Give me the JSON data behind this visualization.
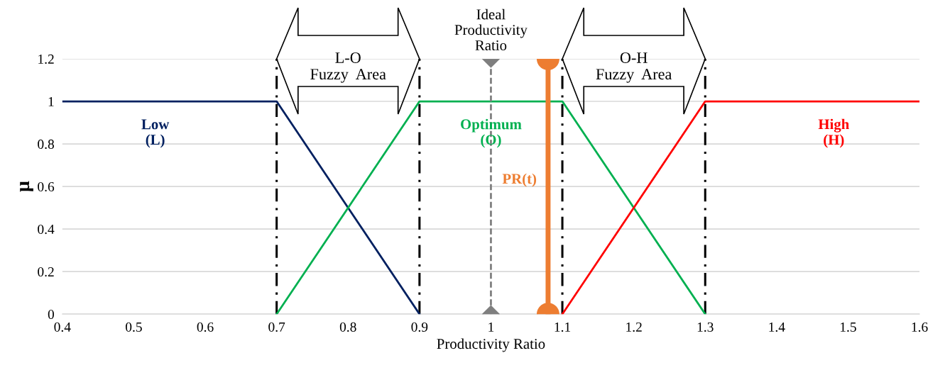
{
  "chart_data": {
    "type": "line",
    "xlabel": "Productivity Ratio",
    "ylabel": "μ",
    "series": [
      {
        "name": "Low\n(L)",
        "color": "#002060",
        "x": [
          0.4,
          0.7,
          0.9
        ],
        "values": [
          1,
          1,
          0
        ]
      },
      {
        "name": "Optimum\n(O)",
        "color": "#00b050",
        "x": [
          0.7,
          0.9,
          1.1,
          1.3
        ],
        "values": [
          0,
          1,
          1,
          0
        ]
      },
      {
        "name": "High\n(H)",
        "color": "#ff0000",
        "x": [
          1.1,
          1.3,
          1.6
        ],
        "values": [
          0,
          1,
          1
        ]
      },
      {
        "name": "PR(t)",
        "color": "#ed7d31",
        "x": [
          1.08,
          1.08
        ],
        "values": [
          0,
          1.2
        ],
        "marker": "circle"
      },
      {
        "name": "Ideal\nProductivity\nRatio",
        "color": "#7f7f7f",
        "x": [
          1,
          1
        ],
        "values": [
          0,
          1.2
        ],
        "marker": "diamond",
        "line_style": "dashed"
      }
    ],
    "ref_lines": [
      {
        "axis": "x",
        "value": 0.7,
        "color": "#000000",
        "line_style": "dashdot"
      },
      {
        "axis": "x",
        "value": 0.9,
        "color": "#000000",
        "line_style": "dashdot"
      },
      {
        "axis": "x",
        "value": 1.1,
        "color": "#000000",
        "line_style": "dashdot"
      },
      {
        "axis": "x",
        "value": 1.3,
        "color": "#000000",
        "line_style": "dashdot"
      }
    ],
    "annotations": [
      "L-O\nFuzzy  Area",
      "O-H\nFuzzy  Area"
    ],
    "xlim": [
      0.4,
      1.6
    ],
    "xticks": [
      0.4,
      0.5,
      0.6,
      0.7,
      0.8,
      0.9,
      1,
      1.1,
      1.2,
      1.3,
      1.4,
      1.5,
      1.6
    ],
    "ylim": [
      0,
      1.2
    ],
    "yticks": [
      0,
      0.2,
      0.4,
      0.6,
      0.8,
      1,
      1.2
    ],
    "grid": "y",
    "legend": false,
    "line_style": "solid"
  }
}
